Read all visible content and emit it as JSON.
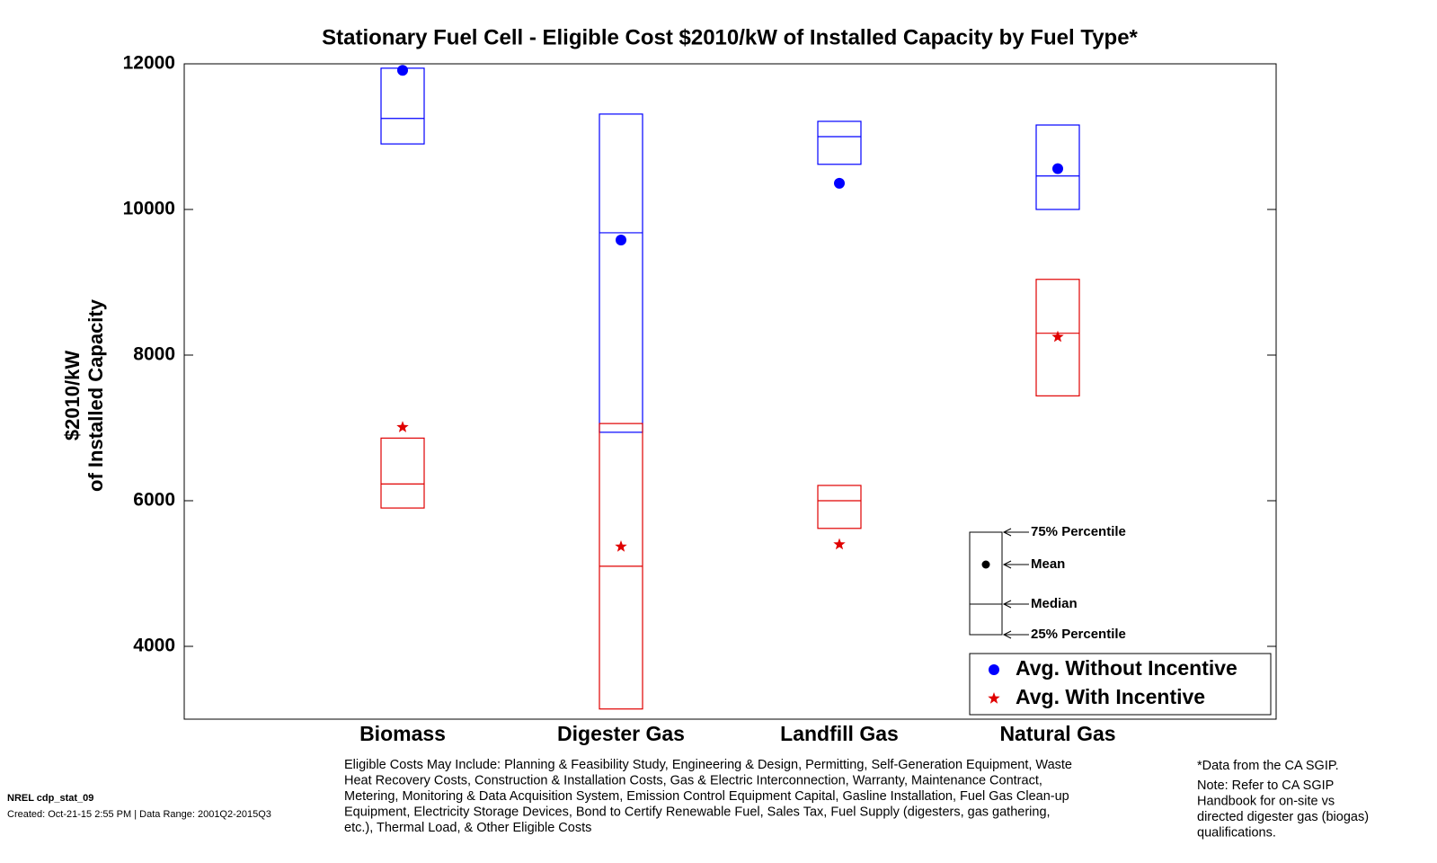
{
  "chart_data": {
    "type": "box",
    "title": "Stationary Fuel Cell - Eligible Cost $2010/kW of Installed Capacity by Fuel Type*",
    "ylabel": [
      "$2010/kW",
      "of Installed Capacity"
    ],
    "categories": [
      "Biomass",
      "Digester Gas",
      "Landfill Gas",
      "Natural Gas"
    ],
    "series": [
      {
        "name": "Avg. Without Incentive",
        "color": "#0000ff",
        "marker": "circle",
        "q1": [
          10900,
          6940,
          10620,
          10000
        ],
        "median": [
          11250,
          9680,
          11000,
          10460
        ],
        "q3": [
          11940,
          11310,
          11210,
          11160
        ],
        "mean": [
          11910,
          9580,
          10360,
          10560
        ]
      },
      {
        "name": "Avg. With Incentive",
        "color": "#e00000",
        "marker": "star",
        "q1": [
          5900,
          3140,
          5620,
          7440
        ],
        "median": [
          6230,
          5100,
          6000,
          8300
        ],
        "q3": [
          6860,
          7060,
          6210,
          9040
        ],
        "mean": [
          7010,
          5370,
          5400,
          8250
        ]
      }
    ],
    "ylim": [
      3000,
      12000
    ],
    "yticks": [
      4000,
      6000,
      8000,
      10000,
      12000
    ],
    "legend": "lower right",
    "key": {
      "q3": "75% Percentile",
      "mean": "Mean",
      "median": "Median",
      "q1": "25% Percentile"
    }
  },
  "notes": {
    "eligible": [
      "Eligible Costs May Include: Planning & Feasibility Study, Engineering & Design, Permitting, Self-Generation Equipment, Waste",
      "Heat Recovery Costs, Construction & Installation Costs, Gas & Electric Interconnection, Warranty, Maintenance Contract,",
      "Metering, Monitoring & Data Acquisition System, Emission Control Equipment Capital, Gasline Installation, Fuel Gas Clean-up",
      "Equipment, Electricity Storage Devices, Bond to Certify Renewable Fuel, Sales Tax, Fuel Supply (digesters, gas gathering,",
      "etc.), Thermal Load, & Other Eligible Costs"
    ],
    "source": [
      "*Data from the CA SGIP.",
      "Note: Refer to CA SGIP",
      "Handbook for on-site vs",
      "directed digester gas (biogas)",
      "qualifications."
    ],
    "id": "NREL cdp_stat_09",
    "created": "Created: Oct-21-15  2:55 PM | Data Range: 2001Q2-2015Q3"
  }
}
